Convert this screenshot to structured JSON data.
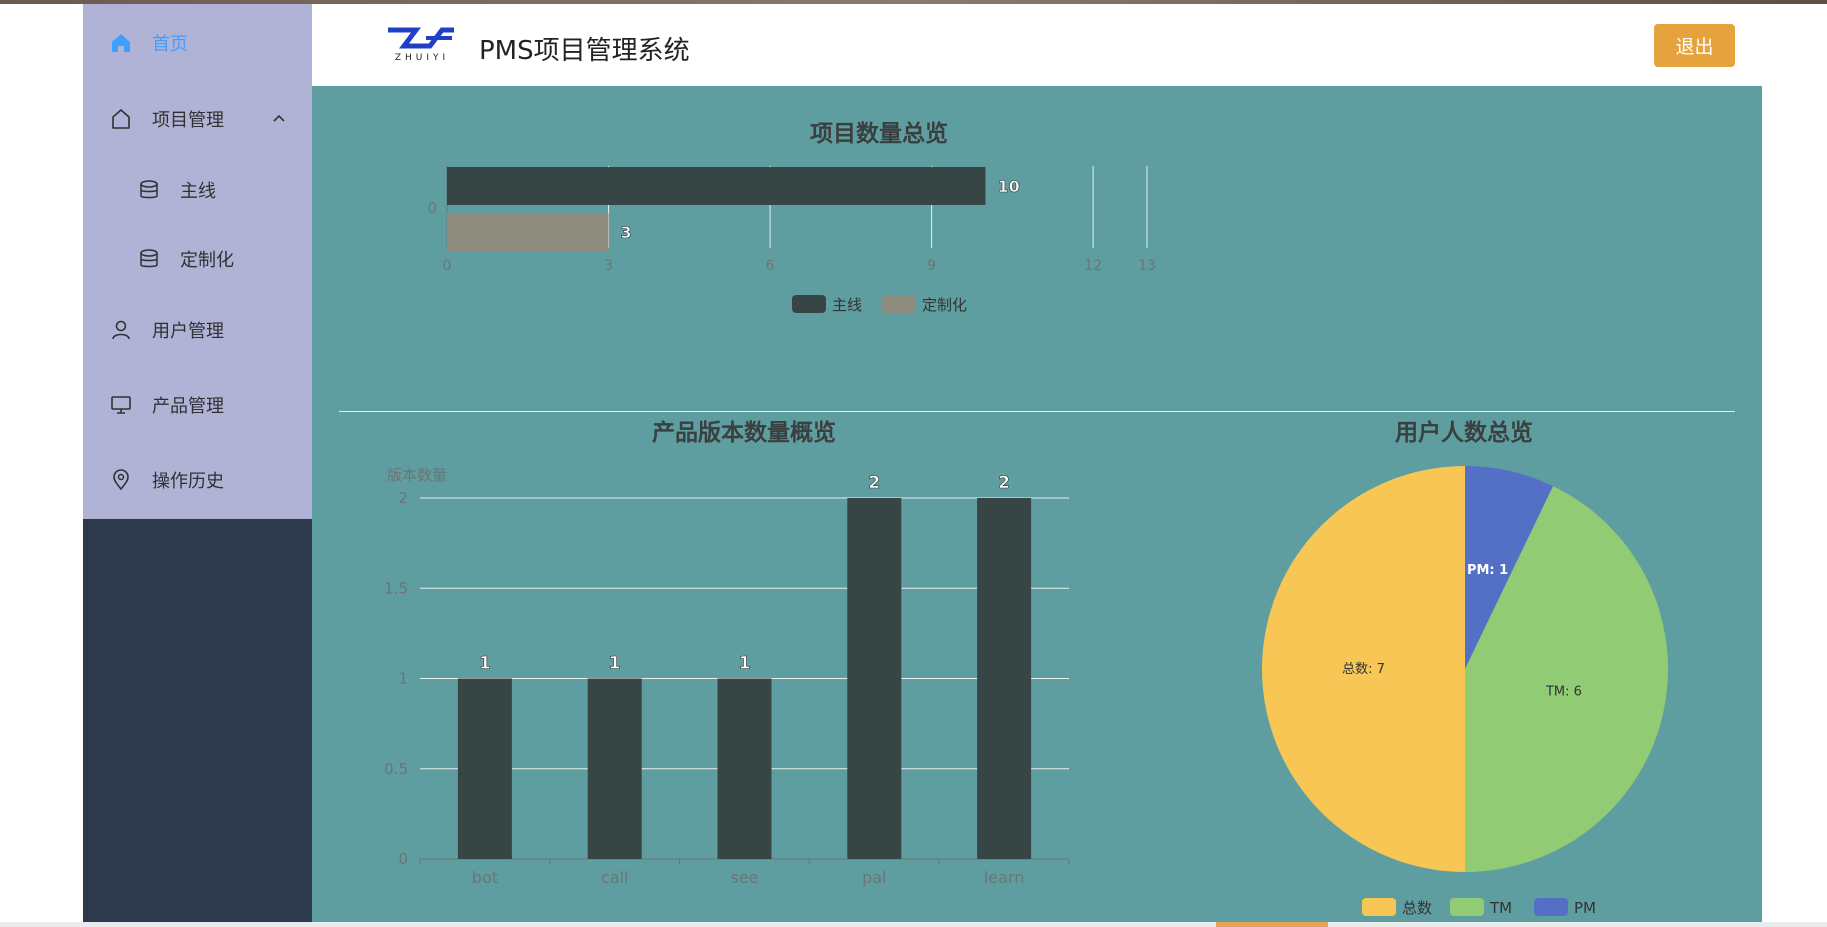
{
  "header": {
    "logo_text": "ZHUIYI",
    "title": "PMS项目管理系统",
    "exit_label": "退出"
  },
  "sidebar": {
    "items": [
      {
        "label": "首页",
        "icon": "home-icon",
        "active": true
      },
      {
        "label": "项目管理",
        "icon": "house-outline-icon",
        "expanded": true
      },
      {
        "label": "主线",
        "icon": "database-icon",
        "sub": true
      },
      {
        "label": "定制化",
        "icon": "database-icon",
        "sub": true
      },
      {
        "label": "用户管理",
        "icon": "user-icon"
      },
      {
        "label": "产品管理",
        "icon": "monitor-icon"
      },
      {
        "label": "操作历史",
        "icon": "location-pin-icon"
      }
    ]
  },
  "colors": {
    "accent": "#409eff",
    "exit_button": "#e6a23c",
    "panel_bg": "#5f9ea0",
    "sidebar_menu": "#b0b3d6",
    "sidebar_bg": "#2c3a4c",
    "bar_dark": "#374545",
    "bar_tan": "#8f8c80",
    "pie_yellow": "#f7c654",
    "pie_green": "#91cb74",
    "pie_blue": "#5470c6"
  },
  "chart_data": [
    {
      "type": "bar",
      "orientation": "horizontal",
      "title": "项目数量总览",
      "categories": [
        "0"
      ],
      "series": [
        {
          "name": "主线",
          "values": [
            10
          ]
        },
        {
          "name": "定制化",
          "values": [
            3
          ]
        }
      ],
      "xticks": [
        "0",
        "3",
        "6",
        "9",
        "12",
        "13"
      ],
      "xlim": [
        0,
        13
      ],
      "grid": true,
      "legend": "bottom-center"
    },
    {
      "type": "bar",
      "title": "产品版本数量概览",
      "ylabel": "版本数量",
      "categories": [
        "bot",
        "call",
        "see",
        "pal",
        "learn"
      ],
      "values": [
        1,
        1,
        1,
        2,
        2
      ],
      "yticks": [
        "0",
        "0.5",
        "1",
        "1.5",
        "2"
      ],
      "ylim": [
        0,
        2
      ],
      "grid": true
    },
    {
      "type": "pie",
      "title": "用户人数总览",
      "slices": [
        {
          "name": "PM",
          "value": 1,
          "label": "PM: 1"
        },
        {
          "name": "TM",
          "value": 6,
          "label": "TM: 6"
        },
        {
          "name": "总数",
          "value": 7,
          "label": "总数: 7"
        }
      ],
      "legend_items": [
        "总数",
        "TM",
        "PM"
      ],
      "legend": "bottom-center"
    }
  ]
}
